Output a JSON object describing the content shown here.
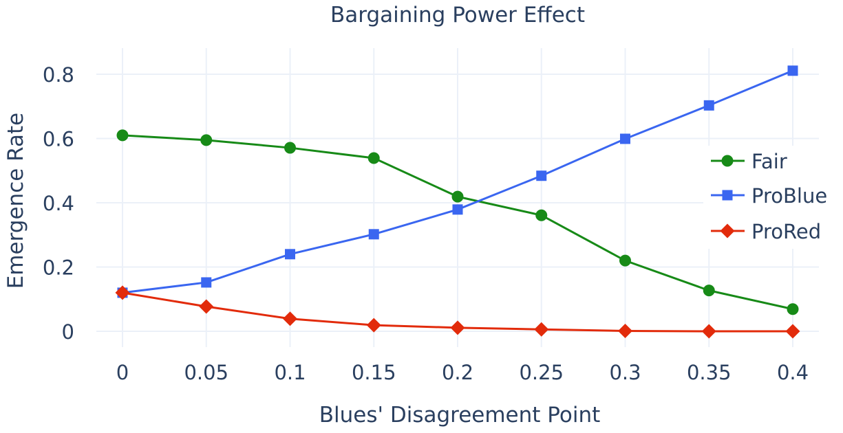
{
  "chart_data": {
    "type": "line",
    "title": "Bargaining Power Effect",
    "xlabel": "Blues' Disagreement Point",
    "ylabel": "Emergence Rate",
    "x": [
      0,
      0.05,
      0.1,
      0.15,
      0.2,
      0.25,
      0.3,
      0.35,
      0.4
    ],
    "x_tick_labels": [
      "0",
      "0.05",
      "0.1",
      "0.15",
      "0.2",
      "0.25",
      "0.3",
      "0.35",
      "0.4"
    ],
    "y_ticks": [
      0,
      0.2,
      0.4,
      0.6,
      0.8
    ],
    "y_tick_labels": [
      "0",
      "0.2",
      "0.4",
      "0.6",
      "0.8"
    ],
    "ylim": [
      -0.04,
      0.88
    ],
    "xlim": [
      -0.022,
      0.422
    ],
    "grid": true,
    "legend_position": "right-middle",
    "series": [
      {
        "name": "Fair",
        "color": "#178a17",
        "marker": "circle",
        "values": [
          0.61,
          0.595,
          0.571,
          0.539,
          0.419,
          0.361,
          0.22,
          0.127,
          0.069
        ]
      },
      {
        "name": "ProBlue",
        "color": "#3a66f0",
        "marker": "square",
        "values": [
          0.12,
          0.152,
          0.24,
          0.302,
          0.379,
          0.484,
          0.599,
          0.703,
          0.811
        ]
      },
      {
        "name": "ProRed",
        "color": "#e22b0b",
        "marker": "diamond",
        "values": [
          0.12,
          0.077,
          0.039,
          0.019,
          0.011,
          0.006,
          0.001,
          0.0,
          0.0
        ]
      }
    ]
  }
}
